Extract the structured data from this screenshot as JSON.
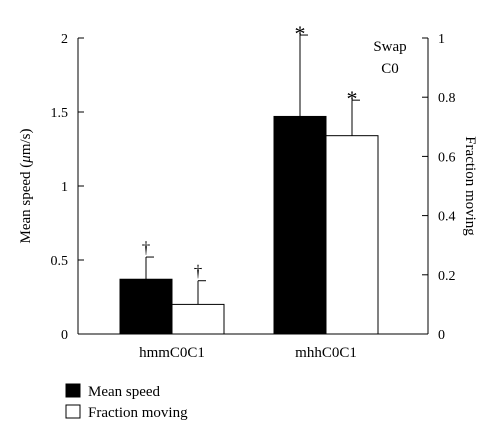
{
  "chart_data": {
    "type": "bar",
    "categories": [
      "hmmC0C1",
      "mhhC0C1"
    ],
    "left_axis": {
      "label": "Mean speed (μm/s)",
      "label_parts": [
        "Mean speed (",
        "μ",
        "m/s)"
      ],
      "ylim": [
        0,
        2
      ],
      "ticks": [
        "0",
        "0.5",
        "1",
        "1.5",
        "2"
      ],
      "tick_values": [
        0,
        0.5,
        1,
        1.5,
        2
      ]
    },
    "right_axis": {
      "label": "Fraction moving",
      "ylim": [
        0,
        1
      ],
      "ticks": [
        "0",
        "0.2",
        "0.4",
        "0.6",
        "0.8",
        "1"
      ],
      "tick_values": [
        0,
        0.2,
        0.4,
        0.6,
        0.8,
        1
      ]
    },
    "series": [
      {
        "name": "Mean speed",
        "axis": "left",
        "color": "#000000",
        "values": [
          0.37,
          1.47
        ],
        "error_upper": [
          0.52,
          2.02
        ],
        "markers": [
          "†",
          "*"
        ]
      },
      {
        "name": "Fraction moving",
        "axis": "right",
        "color": "#ffffff",
        "values": [
          0.1,
          0.67
        ],
        "error_upper": [
          0.18,
          0.79
        ],
        "markers": [
          "†",
          "*"
        ]
      }
    ],
    "annotation": [
      "Swap",
      "C0"
    ],
    "legend_position": "bottom-left",
    "grid": false
  }
}
